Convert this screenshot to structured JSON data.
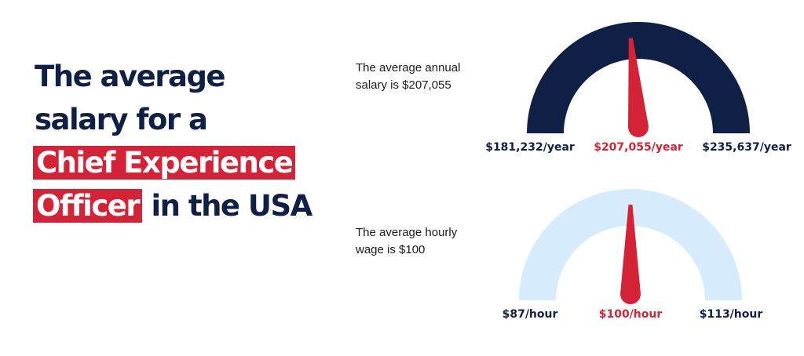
{
  "headline": {
    "line1": "The average",
    "line2": "salary for a",
    "line3_highlight": "Chief Experience",
    "line4_highlight": "Officer",
    "line4_rest": "in the USA"
  },
  "annual": {
    "caption_line1": "The average annual",
    "caption_line2": "salary is $207,055"
  },
  "hourly": {
    "caption_line1": "The average hourly",
    "caption_line2": "wage is $100"
  },
  "colors": {
    "navy": "#0f1f45",
    "red": "#d42336",
    "light_blue": "#d6ebfb",
    "white": "#ffffff"
  },
  "chart_data": [
    {
      "type": "gauge",
      "unit": "year",
      "min": 181232,
      "value": 207055,
      "max": 235637,
      "min_label": "$181,232/year",
      "value_label": "$207,055/year",
      "max_label": "$235,637/year",
      "arc_color": "#0f1f45",
      "needle_color": "#d42336"
    },
    {
      "type": "gauge",
      "unit": "hour",
      "min": 87,
      "value": 100,
      "max": 113,
      "min_label": "$87/hour",
      "value_label": "$100/hour",
      "max_label": "$113/hour",
      "arc_color": "#d6ebfb",
      "needle_color": "#d42336"
    }
  ]
}
